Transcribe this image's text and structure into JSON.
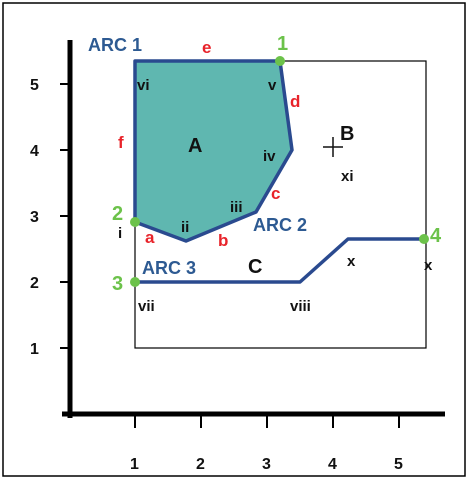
{
  "colors": {
    "polygon_fill": "#5fb7b0",
    "arc": "#2a4a8f",
    "node": "#6cc24a",
    "edge_label": "#e8232a",
    "arc_label": "#2d5a92",
    "text": "#111111",
    "axis": "#000000"
  },
  "axes": {
    "x_ticks": [
      "1",
      "2",
      "3",
      "4",
      "5"
    ],
    "y_ticks": [
      "1",
      "2",
      "3",
      "4",
      "5"
    ]
  },
  "regions": {
    "A": "A",
    "B": "B",
    "C": "C"
  },
  "arcs": {
    "arc1": "ARC 1",
    "arc2": "ARC 2",
    "arc3": "ARC 3"
  },
  "nodes": {
    "n1": "1",
    "n2": "2",
    "n3": "3",
    "n4": "4"
  },
  "edges": {
    "a": "a",
    "b": "b",
    "c": "c",
    "d": "d",
    "e": "e",
    "f": "f"
  },
  "vertices": {
    "i": "i",
    "ii": "ii",
    "iii": "iii",
    "iv": "iv",
    "v": "v",
    "vi": "vi",
    "vii": "vii",
    "viii": "viii",
    "x1": "x",
    "x2": "x",
    "xi": "xi"
  },
  "label_point_symbol": "+"
}
